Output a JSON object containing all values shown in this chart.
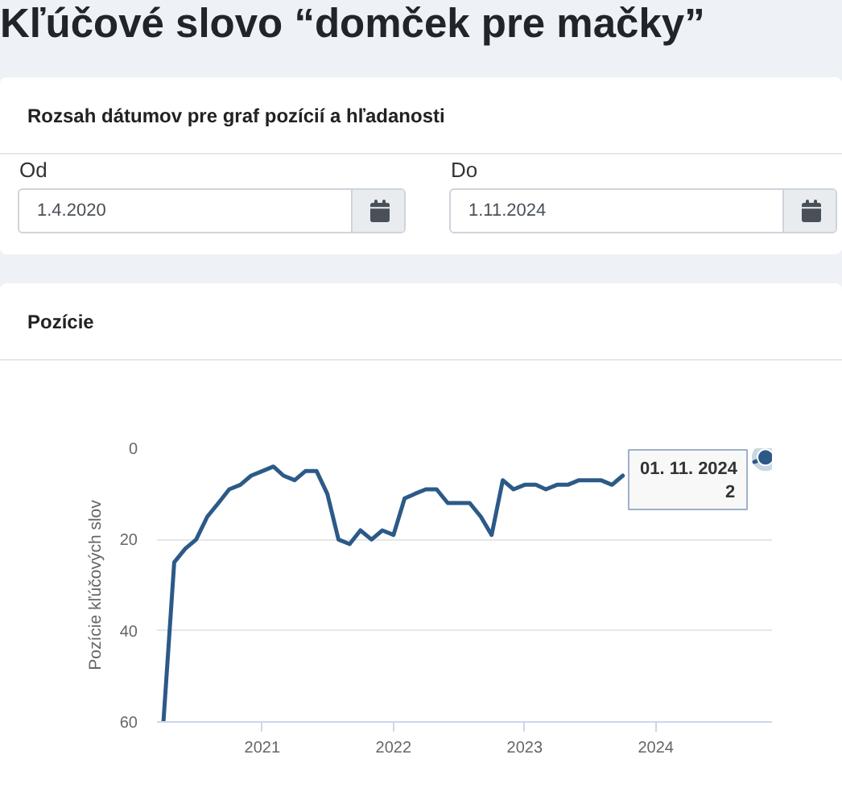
{
  "chart_data": {
    "type": "line",
    "title": "Kľúčové slovo “domček pre mačky”",
    "subtitle": "Pozície",
    "ylabel": "Pozície kľúčových slov",
    "annotations": [
      "Rozsah dátumov pre graf pozícií a hľadanosti",
      "Od",
      "1.4.2020",
      "Do",
      "1.11.2024",
      {
        "text": "01. 11. 2024",
        "x": "2024-11",
        "y": 2
      }
    ],
    "x": [
      "2020-04",
      "2020-05",
      "2020-06",
      "2020-07",
      "2020-08",
      "2020-09",
      "2020-10",
      "2020-11",
      "2020-12",
      "2021-01",
      "2021-02",
      "2021-03",
      "2021-04",
      "2021-05",
      "2021-06",
      "2021-07",
      "2021-08",
      "2021-09",
      "2021-10",
      "2021-11",
      "2021-12",
      "2022-01",
      "2022-02",
      "2022-03",
      "2022-04",
      "2022-05",
      "2022-06",
      "2022-07",
      "2022-08",
      "2022-09",
      "2022-10",
      "2022-11",
      "2022-12",
      "2023-01",
      "2023-02",
      "2023-03",
      "2023-04",
      "2023-05",
      "2023-06",
      "2023-07",
      "2023-08",
      "2023-09",
      "2023-10",
      "2023-11",
      "2023-12",
      "2024-01",
      "2024-02",
      "2024-03",
      "2024-04",
      "2024-05",
      "2024-06",
      "2024-07",
      "2024-08",
      "2024-09",
      "2024-10",
      "2024-11"
    ],
    "series": [
      {
        "color": "#2c5a87",
        "values": [
          60,
          25,
          22,
          20,
          15,
          12,
          9,
          8,
          6,
          5,
          4,
          6,
          7,
          5,
          5,
          10,
          20,
          21,
          18,
          20,
          18,
          19,
          11,
          10,
          9,
          9,
          12,
          12,
          12,
          15,
          19,
          7,
          9,
          8,
          8,
          9,
          8,
          8,
          7,
          7,
          7,
          8,
          6,
          null,
          null,
          null,
          null,
          null,
          null,
          null,
          null,
          null,
          null,
          null,
          3,
          2
        ],
        "value_labels": [
          null,
          null,
          null,
          null,
          null,
          null,
          null,
          null,
          null,
          null,
          null,
          null,
          null,
          null,
          null,
          null,
          null,
          null,
          null,
          null,
          null,
          null,
          null,
          null,
          null,
          null,
          null,
          null,
          null,
          null,
          null,
          null,
          null,
          null,
          null,
          null,
          null,
          null,
          null,
          null,
          null,
          null,
          null,
          null,
          null,
          null,
          null,
          null,
          null,
          null,
          null,
          null,
          null,
          null,
          null,
          "2"
        ]
      }
    ],
    "xlim": [
      "2020-03-14",
      "2024-11-19"
    ],
    "ylim": [
      60,
      0
    ],
    "xticks": [
      "2021",
      "2022",
      "2023",
      "2024"
    ],
    "yticks": [
      0,
      20,
      40,
      60
    ],
    "grid": "y",
    "line_style": "solid"
  }
}
